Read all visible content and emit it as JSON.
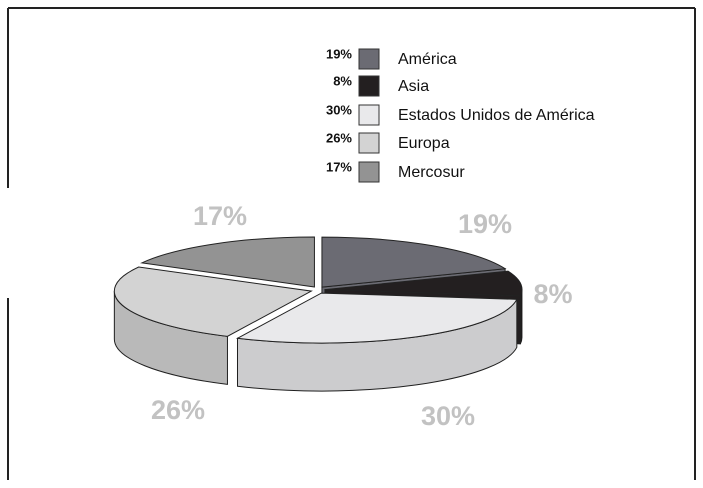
{
  "chart_data": {
    "type": "pie",
    "categories": [
      "América",
      "Asia",
      "Estados Unidos de América",
      "Europa",
      "Mercosur"
    ],
    "values": [
      19,
      8,
      30,
      26,
      17
    ],
    "value_labels": [
      "19%",
      "8%",
      "30%",
      "26%",
      "17%"
    ],
    "colors": [
      "#6b6b73",
      "#231f20",
      "#e9e9eb",
      "#d3d3d3",
      "#939393"
    ],
    "legend": "top"
  }
}
